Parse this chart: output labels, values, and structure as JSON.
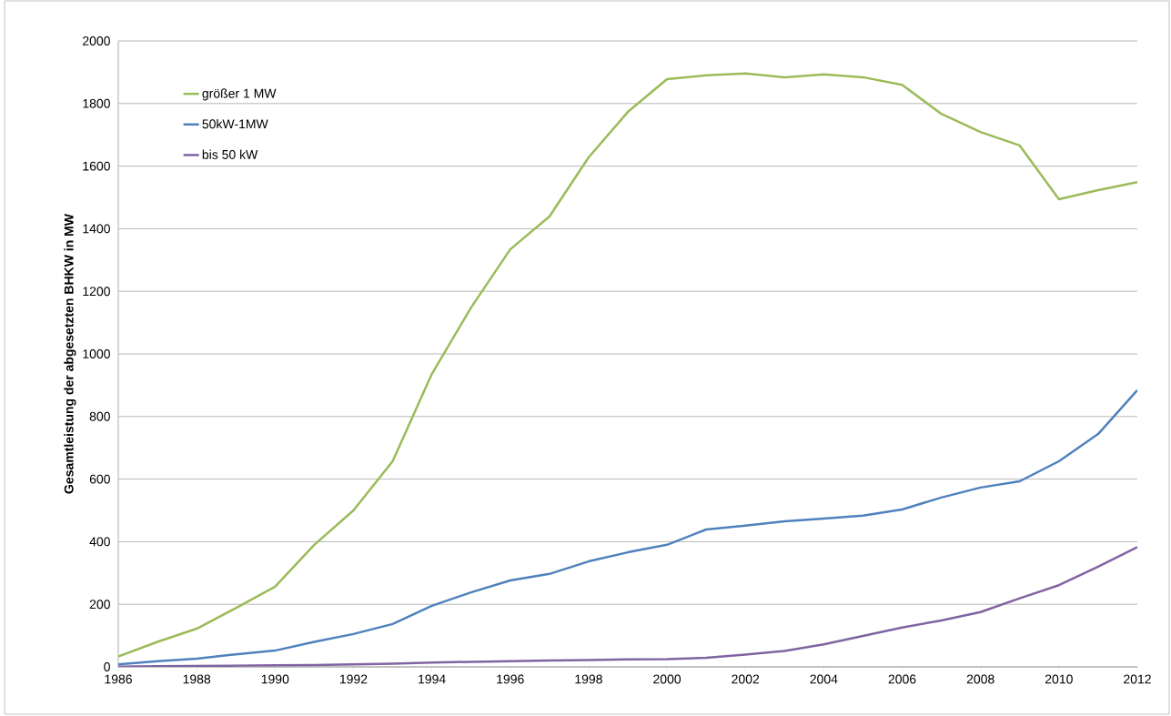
{
  "chart_data": {
    "type": "line",
    "ylabel": "Gesamtleistung der abgesetzten BHKW in MW",
    "x": [
      1986,
      1987,
      1988,
      1989,
      1990,
      1991,
      1992,
      1993,
      1994,
      1995,
      1996,
      1997,
      1998,
      1999,
      2000,
      2001,
      2002,
      2003,
      2004,
      2005,
      2006,
      2007,
      2008,
      2009,
      2010,
      2011,
      2012
    ],
    "series": [
      {
        "name": "größer 1 MW",
        "color": "#9bbb59",
        "values": [
          33,
          80,
          122,
          188,
          256,
          390,
          500,
          657,
          936,
          1148,
          1334,
          1439,
          1628,
          1773,
          1878,
          1890,
          1896,
          1884,
          1893,
          1884,
          1860,
          1767,
          1709,
          1666,
          1494,
          1523,
          1549
        ]
      },
      {
        "name": "50kW-1MW",
        "color": "#4f81bd",
        "values": [
          8,
          18,
          26,
          40,
          52,
          80,
          105,
          137,
          195,
          238,
          276,
          297,
          337,
          366,
          390,
          439,
          451,
          465,
          474,
          483,
          503,
          541,
          573,
          593,
          657,
          744,
          884
        ]
      },
      {
        "name": "bis 50 kW",
        "color": "#8064a2",
        "values": [
          1,
          2,
          3,
          4,
          5,
          6,
          8,
          10,
          14,
          16,
          18,
          20,
          22,
          24,
          25,
          29,
          39,
          51,
          72,
          99,
          126,
          148,
          175,
          219,
          261,
          320,
          383
        ]
      }
    ],
    "xlim": [
      1986,
      2012
    ],
    "xticks": [
      1986,
      1988,
      1990,
      1992,
      1994,
      1996,
      1998,
      2000,
      2002,
      2004,
      2006,
      2008,
      2010,
      2012
    ],
    "ylim": [
      0,
      2000
    ],
    "yticks": [
      0,
      200,
      400,
      600,
      800,
      1000,
      1200,
      1400,
      1600,
      1800,
      2000
    ],
    "grid": "y",
    "legend": "top left",
    "marker": "none",
    "line_style": "solid"
  }
}
